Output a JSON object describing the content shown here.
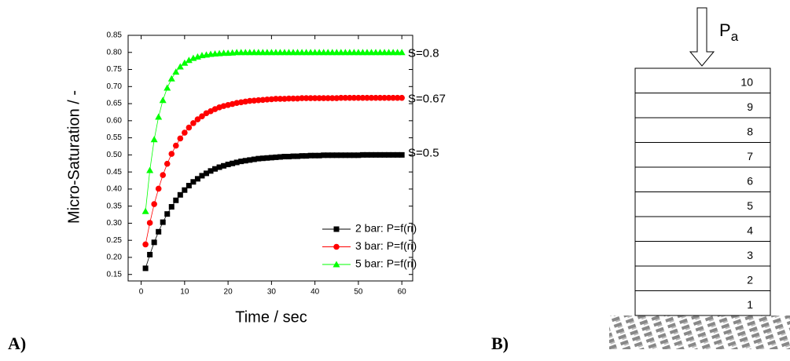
{
  "chart_data": {
    "type": "line",
    "x_label": "Time / sec",
    "y_label": "Micro-Saturation / -",
    "x": [
      1,
      2,
      3,
      4,
      5,
      6,
      7,
      8,
      9,
      10,
      11,
      12,
      13,
      14,
      15,
      16,
      17,
      18,
      19,
      20,
      21,
      22,
      23,
      24,
      25,
      26,
      27,
      28,
      29,
      30,
      31,
      32,
      33,
      34,
      35,
      36,
      37,
      38,
      39,
      40,
      41,
      42,
      43,
      44,
      45,
      46,
      47,
      48,
      49,
      50,
      51,
      52,
      53,
      54,
      55,
      56,
      57,
      58,
      59,
      60
    ],
    "series": [
      {
        "name": "2 bar: P=f(ri)",
        "color": "#000000",
        "marker": "square",
        "values": [
          0.168,
          0.208,
          0.244,
          0.275,
          0.303,
          0.327,
          0.348,
          0.367,
          0.383,
          0.397,
          0.41,
          0.421,
          0.43,
          0.439,
          0.446,
          0.453,
          0.459,
          0.464,
          0.468,
          0.472,
          0.475,
          0.478,
          0.481,
          0.483,
          0.485,
          0.487,
          0.489,
          0.49,
          0.491,
          0.492,
          0.493,
          0.494,
          0.495,
          0.495,
          0.496,
          0.496,
          0.497,
          0.497,
          0.498,
          0.498,
          0.498,
          0.499,
          0.499,
          0.499,
          0.499,
          0.499,
          0.499,
          0.499,
          0.499,
          0.499,
          0.5,
          0.5,
          0.5,
          0.5,
          0.5,
          0.5,
          0.5,
          0.5,
          0.5,
          0.5
        ]
      },
      {
        "name": "3 bar: P=f(ri)",
        "color": "#ff0000",
        "marker": "circle",
        "values": [
          0.238,
          0.301,
          0.356,
          0.401,
          0.441,
          0.474,
          0.503,
          0.527,
          0.548,
          0.565,
          0.58,
          0.593,
          0.604,
          0.613,
          0.622,
          0.628,
          0.634,
          0.639,
          0.643,
          0.646,
          0.649,
          0.652,
          0.654,
          0.656,
          0.658,
          0.659,
          0.66,
          0.661,
          0.662,
          0.663,
          0.664,
          0.664,
          0.664,
          0.665,
          0.665,
          0.665,
          0.666,
          0.666,
          0.666,
          0.666,
          0.666,
          0.666,
          0.666,
          0.666,
          0.666,
          0.667,
          0.667,
          0.667,
          0.667,
          0.667,
          0.667,
          0.667,
          0.667,
          0.667,
          0.667,
          0.667,
          0.667,
          0.667,
          0.667,
          0.667
        ]
      },
      {
        "name": "5 bar: P=f(ri)",
        "color": "#00ff00",
        "marker": "triangle",
        "values": [
          0.335,
          0.455,
          0.545,
          0.611,
          0.66,
          0.696,
          0.723,
          0.743,
          0.758,
          0.769,
          0.777,
          0.783,
          0.787,
          0.791,
          0.793,
          0.795,
          0.796,
          0.797,
          0.798,
          0.798,
          0.799,
          0.8,
          0.8,
          0.8,
          0.8,
          0.8,
          0.8,
          0.8,
          0.8,
          0.8,
          0.8,
          0.8,
          0.8,
          0.8,
          0.8,
          0.8,
          0.8,
          0.8,
          0.8,
          0.8,
          0.8,
          0.8,
          0.8,
          0.8,
          0.8,
          0.8,
          0.8,
          0.8,
          0.8,
          0.8,
          0.8,
          0.8,
          0.8,
          0.8,
          0.8,
          0.8,
          0.8,
          0.8,
          0.8,
          0.8
        ]
      }
    ],
    "annotations": [
      "S=0.5",
      "S=0.67",
      "S=0.8"
    ],
    "xlim": [
      -3,
      62.5
    ],
    "xticks": [
      0,
      10,
      20,
      30,
      40,
      50,
      60
    ],
    "ylim": [
      0.131,
      0.85
    ],
    "yticks": [
      0.15,
      {
        "value": 0.2,
        "label": "0.20"
      },
      0.25,
      {
        "value": 0.3,
        "label": "0.30"
      },
      0.35,
      {
        "value": 0.4,
        "label": "0.40"
      },
      0.45,
      {
        "value": 0.5,
        "label": "0.50"
      },
      0.55,
      {
        "value": 0.6,
        "label": "0.60"
      },
      0.65,
      {
        "value": 0.7,
        "label": "0.70"
      },
      0.75,
      {
        "value": 0.8,
        "label": "0.80"
      },
      0.85
    ],
    "grid": false,
    "legend": "lower right"
  },
  "panel_labels": [
    "A)",
    "B)"
  ],
  "diagram": {
    "pressure_label": "P",
    "pressure_subscript": "a",
    "layers": [
      "10",
      "9",
      "8",
      "7",
      "6",
      "5",
      "4",
      "3",
      "2",
      "1"
    ]
  }
}
